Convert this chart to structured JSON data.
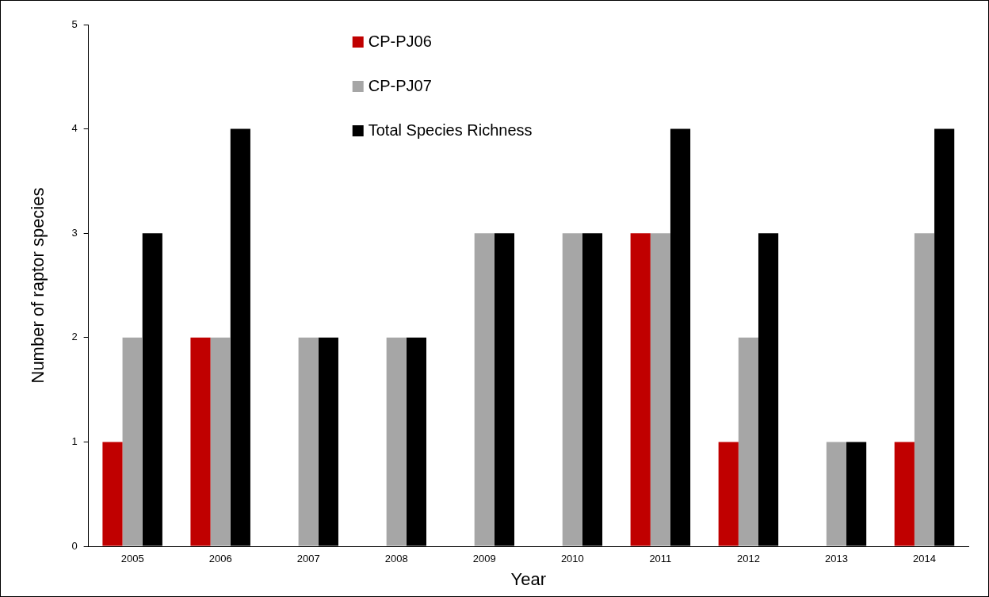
{
  "chart_data": {
    "type": "bar",
    "xlabel": "Year",
    "ylabel": "Number of raptor species",
    "categories": [
      "2005",
      "2006",
      "2007",
      "2008",
      "2009",
      "2010",
      "2011",
      "2012",
      "2013",
      "2014"
    ],
    "series": [
      {
        "name": "CP-PJ06",
        "color": "#c00000",
        "values": [
          1,
          2,
          0,
          0,
          0,
          0,
          3,
          1,
          0,
          1
        ]
      },
      {
        "name": "CP-PJ07",
        "color": "#a6a6a6",
        "values": [
          2,
          2,
          2,
          2,
          3,
          3,
          3,
          2,
          1,
          3
        ]
      },
      {
        "name": "Total Species Richness",
        "color": "#000000",
        "values": [
          3,
          4,
          2,
          2,
          3,
          3,
          4,
          3,
          1,
          4
        ]
      }
    ],
    "ylim": [
      0,
      5
    ],
    "yticks": [
      0,
      1,
      2,
      3,
      4,
      5
    ],
    "grid": false,
    "legend": "top"
  }
}
